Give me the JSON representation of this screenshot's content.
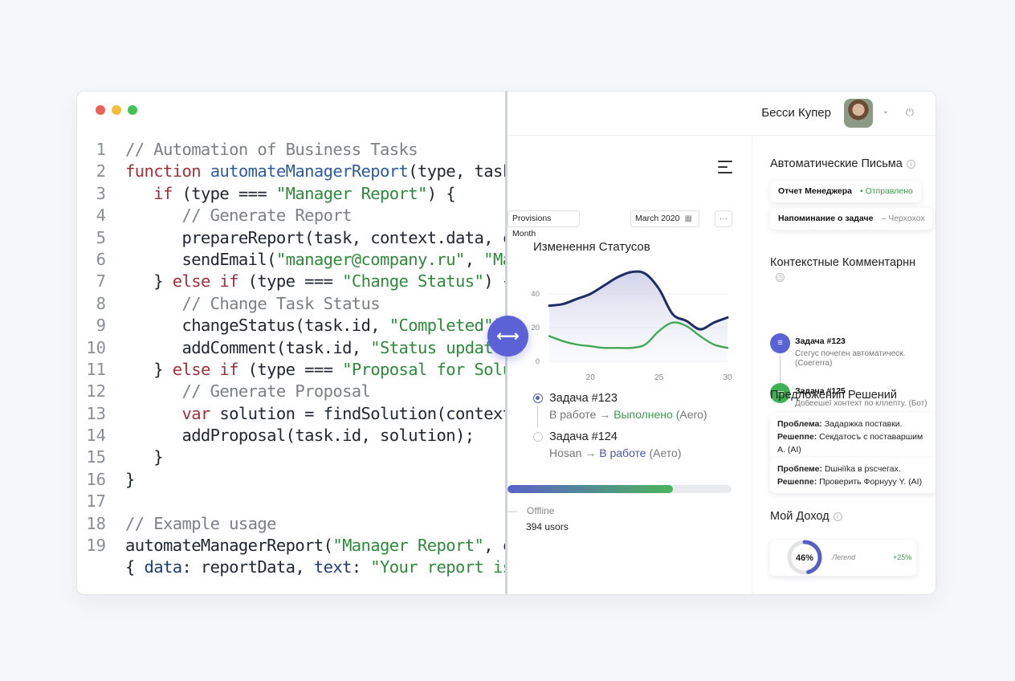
{
  "code": {
    "lines": [
      {
        "n": "1",
        "tokens": [
          {
            "t": "// Automation of Business Tasks",
            "c": "c"
          }
        ]
      },
      {
        "n": "2",
        "tokens": [
          {
            "t": "function ",
            "c": "k"
          },
          {
            "t": "automateManagerReport",
            "c": "f"
          },
          {
            "t": "(type, task, co",
            "c": "tx"
          }
        ]
      },
      {
        "n": "3",
        "tokens": [
          {
            "t": "   "
          },
          {
            "t": "if",
            "c": "k"
          },
          {
            "t": " (type === ",
            "c": "tx"
          },
          {
            "t": "\"Manager Report\"",
            "c": "s"
          },
          {
            "t": ") {",
            "c": "tx"
          }
        ]
      },
      {
        "n": "4",
        "tokens": [
          {
            "t": "      "
          },
          {
            "t": "// Generate Report",
            "c": "c"
          }
        ]
      },
      {
        "n": "5",
        "tokens": [
          {
            "t": "      prepareReport(task, context.data, conte",
            "c": "tx"
          }
        ]
      },
      {
        "n": "6",
        "tokens": [
          {
            "t": "      sendEmail(",
            "c": "tx"
          },
          {
            "t": "\"manager@company.ru\"",
            "c": "s"
          },
          {
            "t": ", ",
            "c": "tx"
          },
          {
            "t": "\"Manag",
            "c": "s"
          }
        ]
      },
      {
        "n": "7",
        "tokens": [
          {
            "t": "   } ",
            "c": "tx"
          },
          {
            "t": "else if",
            "c": "k"
          },
          {
            "t": " (type === ",
            "c": "tx"
          },
          {
            "t": "\"Change Status\"",
            "c": "s"
          },
          {
            "t": ") {",
            "c": "tx"
          }
        ]
      },
      {
        "n": "8",
        "tokens": [
          {
            "t": "      "
          },
          {
            "t": "// Change Task Status",
            "c": "c"
          }
        ]
      },
      {
        "n": "9",
        "tokens": [
          {
            "t": "      changeStatus(task.id, ",
            "c": "tx"
          },
          {
            "t": "\"Completed\"",
            "c": "s"
          },
          {
            "t": ");",
            "c": "tx"
          }
        ]
      },
      {
        "n": "10",
        "tokens": [
          {
            "t": "      addComment(task.id, ",
            "c": "tx"
          },
          {
            "t": "\"Status updated a",
            "c": "s"
          }
        ]
      },
      {
        "n": "11",
        "tokens": [
          {
            "t": "   } ",
            "c": "tx"
          },
          {
            "t": "else if",
            "c": "k"
          },
          {
            "t": " (type === ",
            "c": "tx"
          },
          {
            "t": "\"Proposal for Solution",
            "c": "s"
          }
        ]
      },
      {
        "n": "12",
        "tokens": [
          {
            "t": "      "
          },
          {
            "t": "// Generate Proposal",
            "c": "c"
          }
        ]
      },
      {
        "n": "13",
        "tokens": [
          {
            "t": "      "
          },
          {
            "t": "var",
            "c": "k"
          },
          {
            "t": " solution = findSolution(context.pro",
            "c": "tx"
          }
        ]
      },
      {
        "n": "14",
        "tokens": [
          {
            "t": "      addProposal(task.id, solution);",
            "c": "tx"
          }
        ]
      },
      {
        "n": "15",
        "tokens": [
          {
            "t": "   }",
            "c": "tx"
          }
        ]
      },
      {
        "n": "16",
        "tokens": [
          {
            "t": "}",
            "c": "tx"
          }
        ]
      },
      {
        "n": "17",
        "tokens": [
          {
            "t": ""
          }
        ]
      },
      {
        "n": "18",
        "tokens": [
          {
            "t": "// Example usage",
            "c": "c"
          }
        ]
      },
      {
        "n": "19",
        "tokens": [
          {
            "t": "automateManagerReport(",
            "c": "tx"
          },
          {
            "t": "\"Manager Report\"",
            "c": "s"
          },
          {
            "t": ", curre",
            "c": "tx"
          }
        ]
      },
      {
        "n": "",
        "tokens": [
          {
            "t": "{ ",
            "c": "tx"
          },
          {
            "t": "data",
            "c": "v"
          },
          {
            "t": ": reportData, ",
            "c": "tx"
          },
          {
            "t": "text",
            "c": "v"
          },
          {
            "t": ": ",
            "c": "tx"
          },
          {
            "t": "\"Your report is re",
            "c": "s"
          }
        ]
      }
    ]
  },
  "swap_handle_glyph": "⟷",
  "header": {
    "user_name": "Бесси Купер",
    "chevron": "⌄",
    "power_glyph": "⏻"
  },
  "main": {
    "provisions_label": "Provisions Month",
    "date_label": "March 2020",
    "calendar_glyph": "▦",
    "more_glyph": "···",
    "chart_title": "Изменення Статусов",
    "statuses": [
      {
        "title": "Задача #123",
        "from": "В работе",
        "to": "Выполнено",
        "suffix": "(Aero)",
        "active": true,
        "to_color": "green"
      },
      {
        "title": "Задача #124",
        "from": "Hosan",
        "to": "В работе",
        "suffix": "(Aето)",
        "active": false,
        "to_color": "blue"
      }
    ],
    "progress_value": 0.74,
    "offline_label": "Offline",
    "users_label": "394 usors"
  },
  "chart_data": {
    "type": "area",
    "x": [
      17,
      18,
      19,
      20,
      21,
      22,
      23,
      24,
      25,
      26,
      27,
      28,
      29,
      30
    ],
    "xticks": [
      "20",
      "25",
      "30"
    ],
    "yticks": [
      "0",
      "20",
      "40"
    ],
    "ylim": [
      0,
      50
    ],
    "xlim": [
      17,
      30
    ],
    "series": [
      {
        "values": [
          33,
          34,
          37,
          40,
          45,
          50,
          53,
          52,
          43,
          28,
          24,
          19,
          23,
          26
        ],
        "color": "#1f2d66",
        "fill": true
      },
      {
        "values": [
          15,
          12,
          10,
          9,
          8,
          8,
          8,
          10,
          18,
          23,
          21,
          15,
          10,
          8
        ],
        "color": "#43a856",
        "fill": false
      }
    ]
  },
  "sidebar": {
    "auto_letters_title": "Автоматические Письма",
    "mails": [
      {
        "title": "Отчет Менеджера",
        "status": "• Отправлено",
        "status_color": "green"
      },
      {
        "title": "Напоминание о задаче",
        "status": "– Черхохох",
        "status_color": "gray"
      }
    ],
    "comments_title": "Контекстные Комментарнн",
    "comments": [
      {
        "title": "Задача #123",
        "text": "Сгегус почеген автоматическ. (Coeгerra)",
        "icon_glyph": "≡",
        "color": "#5a62d6"
      },
      {
        "title": "Задача #125",
        "text": "Добеешеї хонтехт по кллепту. (Бот)",
        "icon_glyph": "▭",
        "color": "#3fae55"
      }
    ],
    "solutions_title": "Предложенип Решений",
    "solutions": [
      {
        "problem_label": "Проблема:",
        "problem": "Задаржка поставки.",
        "solution_label": "Решеппе:",
        "solution": "Секдатосъ с поставаршим А. (AI)"
      },
      {
        "problem_label": "Пробпеме:",
        "problem": "Dшніїka в pscчегах.",
        "solution_label": "Решеппе:",
        "solution": "Проверить Форнууу Y. (AI)"
      }
    ],
    "income_title": "Мой Доход",
    "income_percent": "46%",
    "income_value": 0.46,
    "trend_label": "Лerend",
    "trend_change": "+25%"
  }
}
